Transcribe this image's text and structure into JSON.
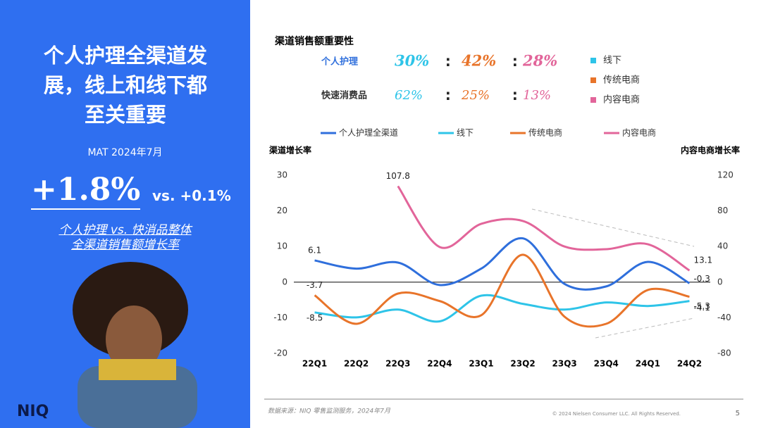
{
  "slide": {
    "title": "个人护理全渠道发展，线上和线下都至关重要",
    "period": "MAT 2024年7月",
    "headline": "+1.8%",
    "compare": "vs. +0.1%",
    "caption_1": "个人护理 vs. 快消品整体",
    "caption_2": "全渠道销售额增长率",
    "logo": "NIQ",
    "source": "数据来源：NIQ 零售监测服务，2024年7月",
    "copyright": "© 2024 Nielsen Consumer LLC. All Rights Reserved.",
    "page": "5"
  },
  "importance": {
    "title": "渠道销售额重要性",
    "rows": [
      {
        "label": "个人护理",
        "shares": [
          "30%",
          "42%",
          "28%"
        ]
      },
      {
        "label": "快速消费品",
        "shares": [
          "62%",
          "25%",
          "13%"
        ]
      }
    ],
    "legend": [
      {
        "name": "线下",
        "color": "#2ec4e8"
      },
      {
        "name": "传统电商",
        "color": "#e8742a"
      },
      {
        "name": "内容电商",
        "color": "#e2659a"
      }
    ]
  },
  "chart_data": {
    "type": "line",
    "y_label": "渠道增长率",
    "y2_label": "内容电商增长率",
    "categories": [
      "22Q1",
      "22Q2",
      "22Q3",
      "22Q4",
      "23Q1",
      "23Q2",
      "23Q3",
      "23Q4",
      "24Q1",
      "24Q2"
    ],
    "series": [
      {
        "name": "个人护理全渠道",
        "color": "#2f6fdc",
        "values": [
          6.1,
          3.8,
          5.5,
          -0.8,
          3.8,
          12.3,
          -0.5,
          -1.2,
          5.7,
          -0.3
        ]
      },
      {
        "name": "线下",
        "color": "#2ec4e8",
        "values": [
          -8.5,
          -9.9,
          -7.7,
          -11,
          -3.8,
          -6.1,
          -7.7,
          -5.7,
          -6.7,
          -5.3
        ]
      },
      {
        "name": "传统电商",
        "color": "#e8742a",
        "values": [
          -3.7,
          -11.7,
          -3.2,
          -5.3,
          -9.3,
          7.7,
          -9.7,
          -11.7,
          -2.2,
          -4.1
        ]
      },
      {
        "name": "内容电商",
        "color": "#e2659a",
        "axis": "y2",
        "values": [
          null,
          null,
          107.8,
          39.5,
          65.5,
          68.7,
          40,
          37,
          42.6,
          13.1
        ]
      }
    ],
    "ylim": [
      -20,
      30
    ],
    "yticks": [
      -20,
      -10,
      0,
      10,
      20,
      30
    ],
    "y2lim": [
      -80,
      120
    ],
    "y2ticks": [
      -80,
      -40,
      0,
      40,
      80,
      120
    ]
  }
}
